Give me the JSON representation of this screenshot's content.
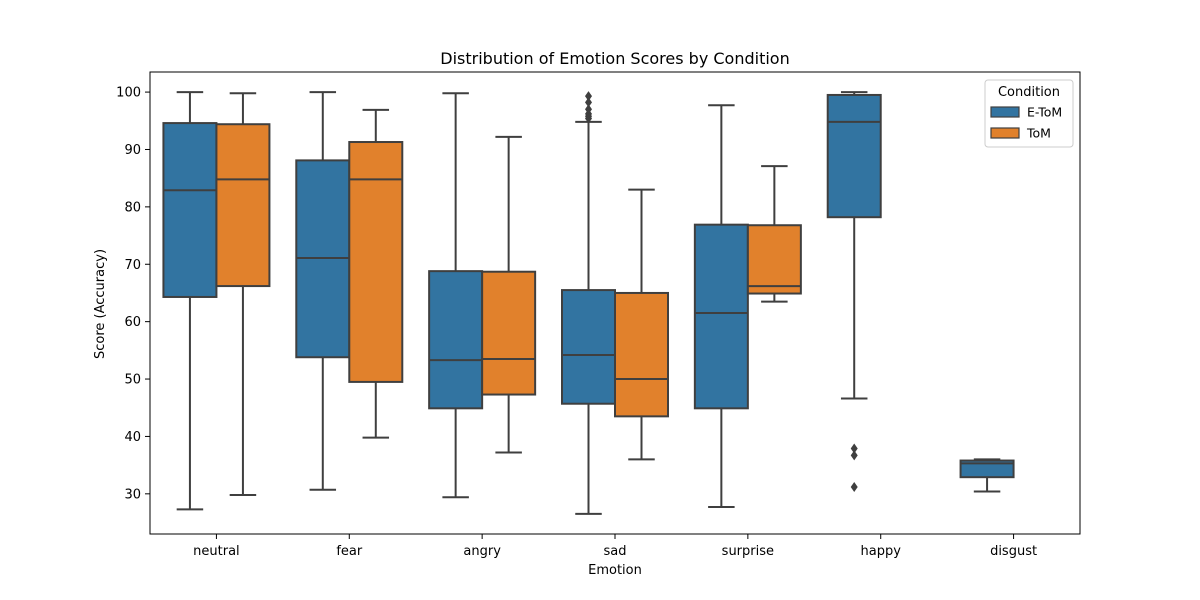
{
  "chart_data": {
    "type": "boxplot",
    "title": "Distribution of Emotion Scores by Condition",
    "xlabel": "Emotion",
    "ylabel": "Score (Accuracy)",
    "categories": [
      "neutral",
      "fear",
      "angry",
      "sad",
      "surprise",
      "happy",
      "disgust"
    ],
    "yticks": [
      30,
      40,
      50,
      60,
      70,
      80,
      90,
      100
    ],
    "ylim": [
      23,
      103.5
    ],
    "grid": false,
    "legend": {
      "title": "Condition",
      "position": "top-right"
    },
    "series": [
      {
        "name": "E-ToM",
        "color": "#3274a1",
        "boxes": [
          {
            "category": "neutral",
            "whislo": 27.3,
            "q1": 64.3,
            "med": 82.9,
            "q3": 94.6,
            "whishi": 100.0,
            "fliers": []
          },
          {
            "category": "fear",
            "whislo": 30.7,
            "q1": 53.8,
            "med": 71.1,
            "q3": 88.1,
            "whishi": 100.0,
            "fliers": []
          },
          {
            "category": "angry",
            "whislo": 29.4,
            "q1": 44.9,
            "med": 53.3,
            "q3": 68.8,
            "whishi": 99.8,
            "fliers": []
          },
          {
            "category": "sad",
            "whislo": 26.5,
            "q1": 45.7,
            "med": 54.2,
            "q3": 65.5,
            "whishi": 94.8,
            "fliers": [
              95.4,
              95.8,
              96.2,
              97.0,
              98.2,
              99.3
            ]
          },
          {
            "category": "surprise",
            "whislo": 27.7,
            "q1": 44.9,
            "med": 61.5,
            "q3": 76.9,
            "whishi": 97.7,
            "fliers": []
          },
          {
            "category": "happy",
            "whislo": 46.6,
            "q1": 78.2,
            "med": 94.8,
            "q3": 99.5,
            "whishi": 100.0,
            "fliers": [
              31.2,
              36.7,
              37.9
            ]
          },
          {
            "category": "disgust",
            "whislo": 30.4,
            "q1": 32.9,
            "med": 35.3,
            "q3": 35.8,
            "whishi": 36.0,
            "fliers": []
          }
        ]
      },
      {
        "name": "ToM",
        "color": "#e1812c",
        "boxes": [
          {
            "category": "neutral",
            "whislo": 29.8,
            "q1": 66.2,
            "med": 84.8,
            "q3": 94.4,
            "whishi": 99.8,
            "fliers": []
          },
          {
            "category": "fear",
            "whislo": 39.8,
            "q1": 49.5,
            "med": 84.8,
            "q3": 91.3,
            "whishi": 96.9,
            "fliers": []
          },
          {
            "category": "angry",
            "whislo": 37.2,
            "q1": 47.3,
            "med": 53.5,
            "q3": 68.7,
            "whishi": 92.2,
            "fliers": []
          },
          {
            "category": "sad",
            "whislo": 36.0,
            "q1": 43.5,
            "med": 50.0,
            "q3": 65.0,
            "whishi": 83.0,
            "fliers": []
          },
          {
            "category": "surprise",
            "whislo": 63.5,
            "q1": 64.9,
            "med": 66.2,
            "q3": 76.8,
            "whishi": 87.1,
            "fliers": []
          }
        ]
      }
    ]
  }
}
